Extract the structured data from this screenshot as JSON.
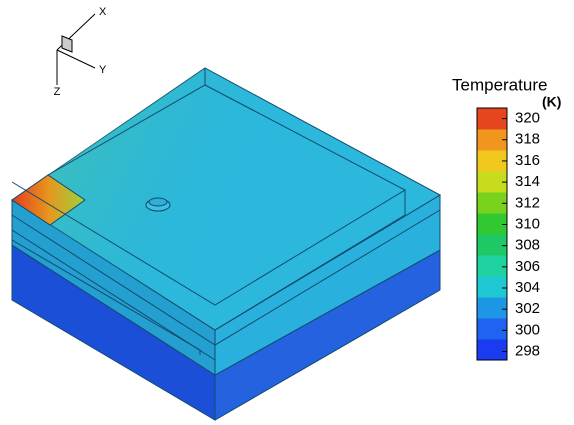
{
  "axes_triad": {
    "x": "X",
    "y": "Y",
    "z": "Z"
  },
  "colorbar": {
    "title": "Temperature",
    "unit": "(K)",
    "clim": [
      297.2,
      321
    ],
    "ticks": [
      298,
      300,
      302,
      304,
      306,
      308,
      310,
      312,
      314,
      316,
      318,
      320
    ],
    "colormap": [
      "#1a3cf0",
      "#1e64f0",
      "#1e96e6",
      "#1ec8d2",
      "#1ed2a0",
      "#1ec864",
      "#32c832",
      "#78d21e",
      "#c8dc1e",
      "#f0c81e",
      "#f0961e",
      "#e6461e"
    ]
  }
}
